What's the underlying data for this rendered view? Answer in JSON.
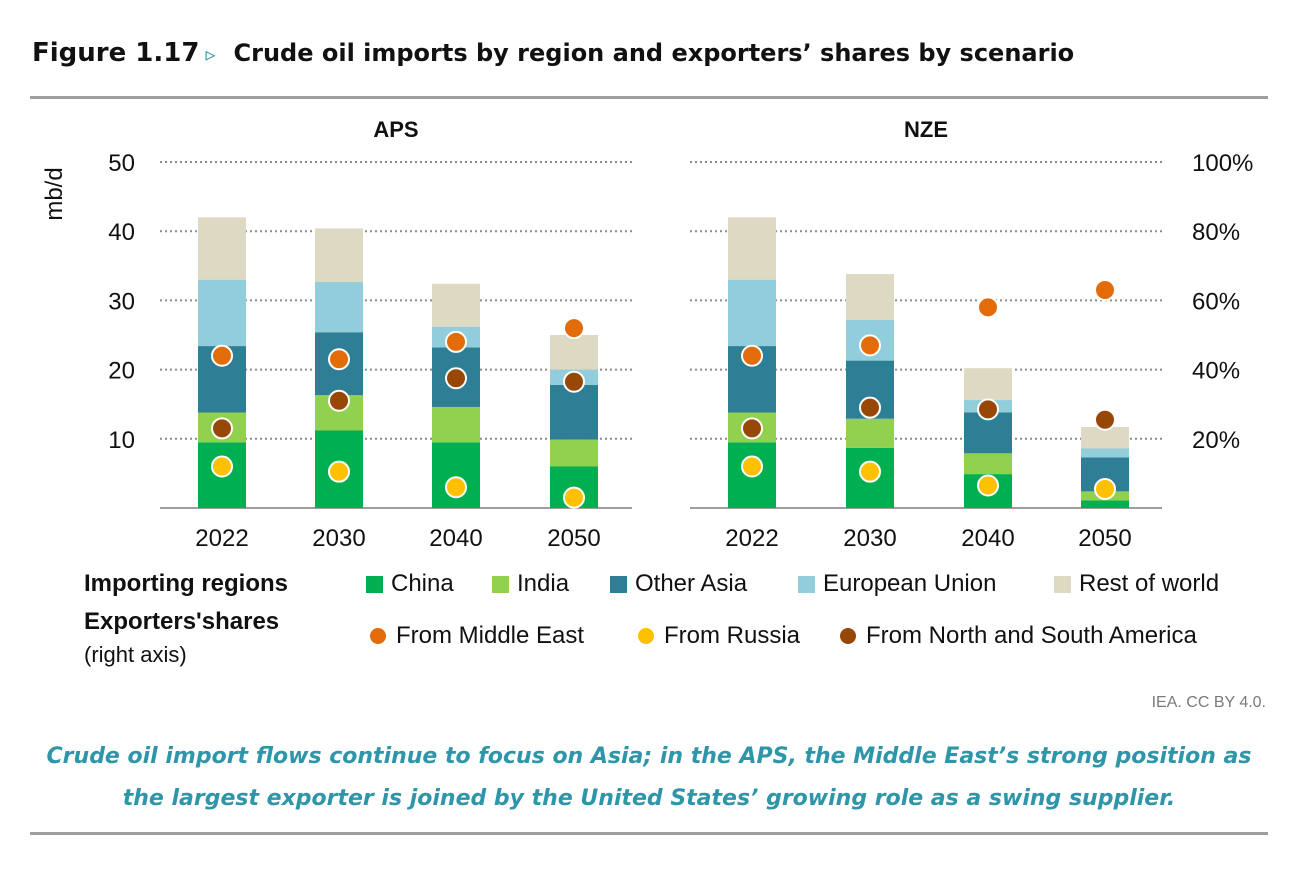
{
  "figure": {
    "label": "Figure 1.17",
    "arrow": "▹",
    "title": "Crude oil imports by region and exporters’ shares by scenario"
  },
  "colors": {
    "China": "#00b050",
    "India": "#92d050",
    "Other Asia": "#2e7f95",
    "European Union": "#92cddc",
    "Rest of world": "#ddd9c3",
    "From Middle East": "#e36c0a",
    "From Russia": "#ffc000",
    "From North and South America": "#974806",
    "grid": "#8c8c8c",
    "caption": "#2f95a8"
  },
  "chart_data": {
    "type": "bar",
    "stacked": true,
    "left_axis": {
      "label": "mb/d",
      "range": [
        0,
        50
      ],
      "ticks": [
        "10",
        "20",
        "30",
        "40",
        "50"
      ]
    },
    "right_axis": {
      "label": "",
      "range": [
        0,
        1
      ],
      "ticks": [
        "20%",
        "40%",
        "60%",
        "80%",
        "100%"
      ]
    },
    "grid": "dotted",
    "panels": [
      {
        "title": "APS",
        "categories": [
          "2022",
          "2030",
          "2040",
          "2050"
        ],
        "bars": [
          {
            "name": "China",
            "values": [
              9.5,
              11.2,
              9.5,
              6.0
            ]
          },
          {
            "name": "India",
            "values": [
              4.3,
              5.1,
              5.1,
              3.9
            ]
          },
          {
            "name": "Other Asia",
            "values": [
              9.6,
              9.1,
              8.6,
              7.9
            ]
          },
          {
            "name": "European Union",
            "values": [
              9.6,
              7.3,
              3.0,
              2.2
            ]
          },
          {
            "name": "Rest of world",
            "values": [
              9.0,
              7.7,
              6.2,
              5.0
            ]
          }
        ],
        "points": [
          {
            "name": "From Middle East",
            "values": [
              0.44,
              0.43,
              0.48,
              0.52
            ]
          },
          {
            "name": "From Russia",
            "values": [
              0.12,
              0.105,
              0.06,
              0.03
            ]
          },
          {
            "name": "From North and South America",
            "values": [
              0.23,
              0.31,
              0.375,
              0.365
            ]
          }
        ]
      },
      {
        "title": "NZE",
        "categories": [
          "2022",
          "2030",
          "2040",
          "2050"
        ],
        "bars": [
          {
            "name": "China",
            "values": [
              9.5,
              8.7,
              4.9,
              1.1
            ]
          },
          {
            "name": "India",
            "values": [
              4.3,
              4.2,
              3.0,
              1.3
            ]
          },
          {
            "name": "Other Asia",
            "values": [
              9.6,
              8.4,
              5.9,
              4.9
            ]
          },
          {
            "name": "European Union",
            "values": [
              9.6,
              5.9,
              1.8,
              1.3
            ]
          },
          {
            "name": "Rest of world",
            "values": [
              9.0,
              6.6,
              4.6,
              3.1
            ]
          }
        ],
        "points": [
          {
            "name": "From Middle East",
            "values": [
              0.44,
              0.47,
              0.58,
              0.63
            ]
          },
          {
            "name": "From Russia",
            "values": [
              0.12,
              0.105,
              0.065,
              0.055
            ]
          },
          {
            "name": "From North and South America",
            "values": [
              0.23,
              0.29,
              0.285,
              0.255
            ]
          }
        ]
      }
    ]
  },
  "legend": {
    "bars_header": "Importing regions",
    "points_header": "Exporters'shares",
    "points_sub": "(right axis)",
    "bars": [
      "China",
      "India",
      "Other Asia",
      "European Union",
      "Rest of world"
    ],
    "points": [
      "From Middle East",
      "From Russia",
      "From North and South America"
    ]
  },
  "credit": "IEA. CC BY 4.0.",
  "caption": "Crude oil import flows continue to focus on Asia; in the APS, the Middle East’s strong position as the largest exporter is joined by the United States’ growing role as a swing supplier."
}
